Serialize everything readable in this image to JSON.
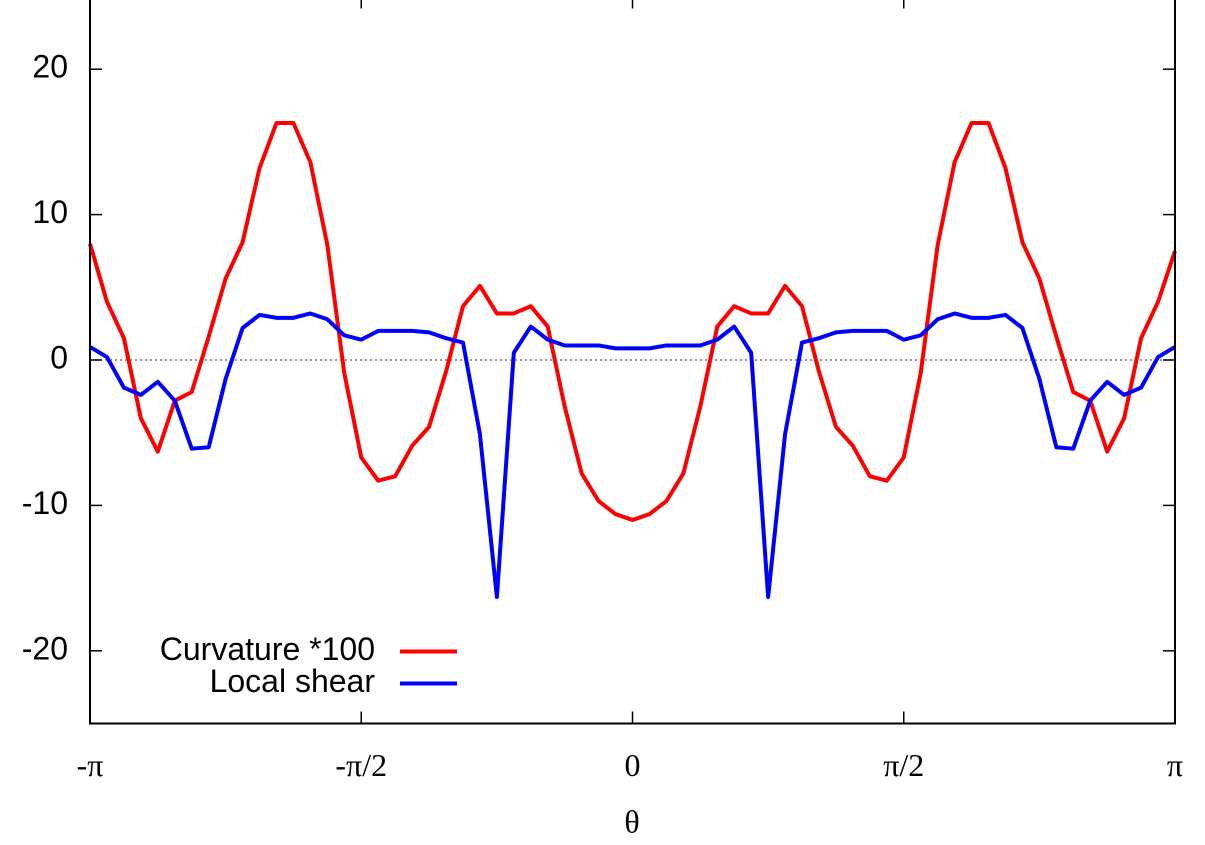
{
  "chart_data": {
    "type": "line",
    "xlabel": "θ",
    "x": [
      -3.1416,
      -3.0434,
      -2.9452,
      -2.8471,
      -2.7489,
      -2.6507,
      -2.5525,
      -2.4544,
      -2.3562,
      -2.258,
      -2.1598,
      -2.0617,
      -1.9635,
      -1.8653,
      -1.7671,
      -1.669,
      -1.5708,
      -1.4726,
      -1.3744,
      -1.2763,
      -1.1781,
      -1.0799,
      -0.9817,
      -0.8836,
      -0.7854,
      -0.6872,
      -0.589,
      -0.4909,
      -0.3927,
      -0.2945,
      -0.1963,
      -0.0982,
      0,
      0.0982,
      0.1963,
      0.2945,
      0.3927,
      0.4909,
      0.589,
      0.6872,
      0.7854,
      0.8836,
      0.9817,
      1.0799,
      1.1781,
      1.2763,
      1.3744,
      1.4726,
      1.5708,
      1.669,
      1.7671,
      1.8653,
      1.9635,
      2.0617,
      2.1598,
      2.258,
      2.3562,
      2.4544,
      2.5525,
      2.6507,
      2.7489,
      2.8471,
      2.9452,
      3.0434,
      3.1416
    ],
    "series": [
      {
        "name": "Curvature *100",
        "color": "#ff0000",
        "values": [
          8.0,
          4.0,
          1.5,
          -4.0,
          -6.3,
          -2.8,
          -2.2,
          1.6,
          5.6,
          8.1,
          13.2,
          16.3,
          16.3,
          13.6,
          7.9,
          -0.9,
          -6.7,
          -8.3,
          -8.0,
          -5.9,
          -4.6,
          -0.8,
          3.7,
          5.1,
          3.2,
          3.2,
          3.7,
          2.3,
          -3.2,
          -7.8,
          -9.7,
          -10.6,
          -11.0,
          -10.6,
          -9.7,
          -7.8,
          -3.2,
          2.3,
          3.7,
          3.2,
          3.2,
          5.1,
          3.7,
          -0.8,
          -4.6,
          -5.9,
          -8.0,
          -8.3,
          -6.7,
          -0.9,
          7.9,
          13.6,
          16.3,
          16.3,
          13.2,
          8.1,
          5.6,
          1.6,
          -2.2,
          -2.8,
          -6.3,
          -4.0,
          1.5,
          4.0,
          7.5
        ]
      },
      {
        "name": "Local shear",
        "color": "#0000ff",
        "values": [
          0.9,
          0.2,
          -1.9,
          -2.4,
          -1.5,
          -2.8,
          -6.1,
          -6.0,
          -1.3,
          2.2,
          3.1,
          2.9,
          2.9,
          3.2,
          2.8,
          1.7,
          1.4,
          2.0,
          2.0,
          2.0,
          1.9,
          1.5,
          1.2,
          -5.1,
          -16.3,
          0.5,
          2.3,
          1.4,
          1.0,
          1.0,
          1.0,
          0.8,
          0.8,
          0.8,
          1.0,
          1.0,
          1.0,
          1.4,
          2.3,
          0.5,
          -16.3,
          -5.1,
          1.2,
          1.5,
          1.9,
          2.0,
          2.0,
          2.0,
          1.4,
          1.7,
          2.8,
          3.2,
          2.9,
          2.9,
          3.1,
          2.2,
          -1.3,
          -6.0,
          -6.1,
          -2.8,
          -1.5,
          -2.4,
          -1.9,
          0.2,
          0.9
        ]
      }
    ],
    "xlim": [
      -3.1416,
      3.1416
    ],
    "xticks": [
      {
        "value": -3.1416,
        "label": "-π"
      },
      {
        "value": -1.5708,
        "label": "-π/2"
      },
      0,
      {
        "value": 1.5708,
        "label": "π/2"
      },
      {
        "value": 3.1416,
        "label": "π"
      }
    ],
    "ylim": [
      -25,
      25
    ],
    "yticks": [
      -20,
      -10,
      0,
      10,
      20
    ],
    "zero_line": true,
    "legend": "bottom-left"
  }
}
